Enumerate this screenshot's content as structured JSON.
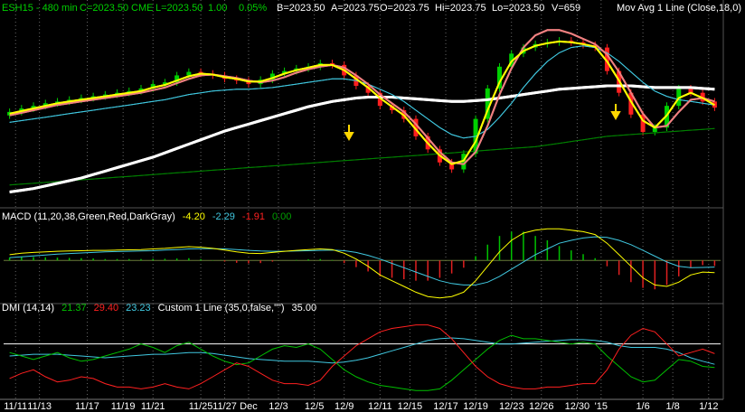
{
  "header": {
    "symbol": "ESH15 - 480 min",
    "close": "C=2023.50",
    "exchange": "CME",
    "last": "L=2023.50",
    "change": "1.00",
    "change_pct": "0.05%",
    "bid": "B=2023.50",
    "ask": "A=2023.75",
    "open": "O=2023.75",
    "high": "Hi=2023.75",
    "low": "Lo=2023.50",
    "volume": "V=659"
  },
  "chart_data": [
    {
      "type": "candlestick",
      "ylim": [
        1968,
        2077
      ],
      "up_color": "#00d000",
      "down_color": "#ff2020",
      "open": [
        2019,
        2021,
        2023,
        2024.5,
        2026,
        2027,
        2028,
        2029,
        2030,
        2031,
        2032,
        2033,
        2034.5,
        2037,
        2038,
        2042,
        2044,
        2043,
        2042,
        2040,
        2039,
        2037,
        2039.5,
        2043,
        2044.5,
        2046,
        2047,
        2049,
        2048,
        2042,
        2036,
        2032,
        2024.5,
        2022,
        2017,
        2007,
        1999.5,
        1992,
        1988,
        1997,
        2017,
        2034.5,
        2047,
        2054.5,
        2058,
        2060,
        2061,
        2062,
        2061,
        2059.5,
        2058,
        2044.5,
        2032,
        2019.5,
        2009.5,
        2012,
        2024.5,
        2034.5,
        2032,
        2027
      ],
      "high": [
        2023,
        2025,
        2026.5,
        2028,
        2029,
        2030,
        2031,
        2032,
        2033,
        2034,
        2035,
        2036.5,
        2039,
        2040,
        2044,
        2046,
        2046,
        2045,
        2044,
        2042,
        2041,
        2041.5,
        2045,
        2046.5,
        2048,
        2049,
        2051,
        2051,
        2050,
        2044,
        2038,
        2034,
        2026.5,
        2024,
        2019,
        2009,
        2001.5,
        1994,
        1999,
        2019,
        2036.5,
        2049,
        2056.5,
        2060,
        2062,
        2063,
        2064,
        2064,
        2063,
        2061.5,
        2060,
        2046.5,
        2034,
        2021.5,
        2014,
        2026.5,
        2036.5,
        2036.5,
        2034,
        2029
      ],
      "low": [
        2017,
        2019,
        2021,
        2022.5,
        2024,
        2025,
        2026,
        2027,
        2028,
        2029,
        2030,
        2031,
        2032.5,
        2035,
        2036,
        2040,
        2041,
        2040,
        2038,
        2037,
        2035,
        2035,
        2037.5,
        2041,
        2042.5,
        2044,
        2045,
        2046,
        2040,
        2034,
        2030,
        2022.5,
        2020,
        2015,
        2005,
        1997.5,
        1990,
        1986,
        1986,
        1995,
        2015,
        2032.5,
        2045,
        2052.5,
        2056,
        2058,
        2059,
        2059,
        2057.5,
        2056,
        2042.5,
        2030,
        2017.5,
        2007.5,
        2007.5,
        2010,
        2022.5,
        2030,
        2025,
        2021.5
      ],
      "close": [
        2021,
        2023,
        2024.5,
        2026,
        2027,
        2028,
        2029,
        2030,
        2031,
        2032,
        2033,
        2034.5,
        2037,
        2038,
        2042,
        2044,
        2043,
        2042,
        2040,
        2039,
        2037,
        2039.5,
        2043,
        2044.5,
        2046,
        2047,
        2049,
        2048,
        2042,
        2036,
        2032,
        2024.5,
        2022,
        2017,
        2007,
        1999.5,
        1992,
        1988,
        1997,
        2017,
        2034.5,
        2047,
        2054.5,
        2058,
        2060,
        2061,
        2062,
        2061,
        2059.5,
        2058,
        2044.5,
        2032,
        2019.5,
        2009.5,
        2012,
        2024.5,
        2034.5,
        2032,
        2027,
        2023.5
      ],
      "series": [
        {
          "color": "#008000",
          "values": [
            1979,
            1979.5,
            1980,
            1980.5,
            1981,
            1981.5,
            1982,
            1982.5,
            1983,
            1983.5,
            1984,
            1984.5,
            1985,
            1985.5,
            1986,
            1986.5,
            1987,
            1987.5,
            1988,
            1988.5,
            1989,
            1989.5,
            1990,
            1990.5,
            1991,
            1991.5,
            1992,
            1992.5,
            1993,
            1993.5,
            1994,
            1994.5,
            1995,
            1995.5,
            1996,
            1996.5,
            1997,
            1997.5,
            1998,
            1998.5,
            1999,
            1999.5,
            2000,
            2000.5,
            2001,
            2002,
            2003,
            2004,
            2005,
            2006,
            2007,
            2007.5,
            2008,
            2008.5,
            2009,
            2009.5,
            2010,
            2010.5,
            2011,
            2011.5
          ]
        },
        {
          "color": "#ffffff",
          "width": 3,
          "values": [
            1975,
            1976,
            1977,
            1978.5,
            1980,
            1981.5,
            1983,
            1985,
            1987,
            1989,
            1991,
            1993,
            1995,
            1997.5,
            2000,
            2002.5,
            2005,
            2007.5,
            2010,
            2012,
            2014,
            2016,
            2018,
            2020,
            2022,
            2024,
            2025.5,
            2027,
            2028,
            2029,
            2029.5,
            2029.5,
            2029.5,
            2029,
            2028.5,
            2028,
            2027.5,
            2027,
            2027,
            2027.5,
            2028,
            2029,
            2030,
            2031,
            2032,
            2033,
            2034,
            2034.5,
            2035,
            2035.5,
            2036,
            2036,
            2036,
            2035.5,
            2035,
            2035,
            2035,
            2035,
            2034.5,
            2034
          ]
        },
        {
          "color": "#40c8e0",
          "values": [
            2015,
            2016,
            2017,
            2018,
            2019,
            2020,
            2021,
            2022,
            2023,
            2024,
            2025,
            2026,
            2027,
            2028,
            2029.5,
            2031,
            2032,
            2033,
            2033.5,
            2034,
            2034,
            2034.5,
            2035,
            2036,
            2037,
            2038,
            2039,
            2040,
            2040,
            2039,
            2037,
            2034,
            2031,
            2027,
            2022,
            2017,
            2012,
            2008,
            2006,
            2007,
            2011,
            2018,
            2026,
            2035,
            2043,
            2050,
            2055,
            2058,
            2059,
            2058,
            2055,
            2050,
            2044,
            2038,
            2033,
            2030,
            2028,
            2027,
            2026,
            2025
          ]
        },
        {
          "color": "#f08080",
          "width": 2,
          "values": [
            2019,
            2020.5,
            2022,
            2023.5,
            2025,
            2026,
            2027,
            2028,
            2029,
            2030,
            2031,
            2032,
            2033.5,
            2035,
            2037.5,
            2040,
            2042,
            2042.5,
            2041.5,
            2040.5,
            2039,
            2038,
            2039,
            2041,
            2043.5,
            2045.5,
            2047,
            2048,
            2046.5,
            2042,
            2037,
            2031,
            2026,
            2021,
            2014,
            2006,
            1998,
            1992,
            1991,
            1998,
            2013,
            2031,
            2046,
            2058,
            2065,
            2068,
            2068,
            2066,
            2063,
            2060,
            2054,
            2044,
            2032,
            2020,
            2012,
            2013,
            2021,
            2028,
            2029,
            2027
          ]
        },
        {
          "name": "Mov Avg 1 Line (Close,18,0)",
          "color": "#ffff00",
          "width": 2,
          "values": [
            2020,
            2021.5,
            2023,
            2024.5,
            2026,
            2027,
            2028,
            2029,
            2030,
            2031,
            2032,
            2033,
            2035,
            2036.5,
            2039,
            2041.5,
            2043,
            2042.5,
            2041,
            2040,
            2038.5,
            2038.5,
            2040.5,
            2043,
            2045,
            2046.5,
            2048,
            2048,
            2045,
            2040,
            2035,
            2029,
            2024,
            2019,
            2011,
            2003,
            1996,
            1991,
            1993,
            2004,
            2022,
            2038,
            2050,
            2056,
            2059,
            2060.5,
            2061.5,
            2061,
            2060,
            2058.5,
            2050,
            2039,
            2027,
            2016,
            2012,
            2019,
            2029,
            2032,
            2029,
            2025
          ]
        }
      ]
    },
    {
      "type": "combo",
      "title": "MACD (11,20,38,Green,Red,DarkGray)",
      "ylim": [
        -14,
        12
      ],
      "zero_color": "#6b7a3a",
      "readouts": [
        {
          "text": "-4.20",
          "color": "#ffff00"
        },
        {
          "text": "-2.29",
          "color": "#40c8e0"
        },
        {
          "text": "-1.91",
          "color": "#ff2020"
        },
        {
          "text": "0.00",
          "color": "#00a000"
        }
      ],
      "series": [
        {
          "kind": "bar",
          "positive_color": "#00c000",
          "negative_color": "#e02020",
          "values": [
            1,
            1.2,
            1.2,
            1.1,
            1,
            0.9,
            0.8,
            0.7,
            0.5,
            0.5,
            0.5,
            0.5,
            0.6,
            0.6,
            0.7,
            0.8,
            0.5,
            0.1,
            -0.4,
            -0.8,
            -1,
            -0.9,
            -0.4,
            0,
            0.2,
            0.4,
            0.5,
            0.2,
            -0.9,
            -2.3,
            -3.8,
            -5.5,
            -6,
            -6.5,
            -7,
            -7,
            -6,
            -4.5,
            -2.5,
            1.5,
            5.5,
            8.5,
            10,
            10,
            8.5,
            7,
            5,
            3.5,
            2.2,
            0.8,
            -2,
            -5,
            -7.5,
            -9.5,
            -10,
            -8.5,
            -5.5,
            -2.5,
            -1.6,
            -1.91
          ]
        },
        {
          "kind": "line",
          "color": "#40c8e0",
          "values": [
            1,
            1.3,
            1.6,
            1.9,
            2.2,
            2.4,
            2.6,
            2.8,
            3,
            3.1,
            3.2,
            3.3,
            3.4,
            3.6,
            3.8,
            4,
            4.1,
            4.1,
            4,
            3.8,
            3.5,
            3.3,
            3.2,
            3.2,
            3.3,
            3.4,
            3.5,
            3.6,
            3.4,
            2.8,
            1.8,
            0.5,
            -1,
            -2.5,
            -4,
            -5.5,
            -7,
            -8,
            -8.5,
            -8.5,
            -7.5,
            -5.5,
            -3,
            -0.5,
            2,
            4,
            6,
            7,
            7.8,
            8.2,
            8,
            7,
            5.5,
            3.5,
            1.5,
            -0.5,
            -2,
            -2.5,
            -2.4,
            -2.29
          ]
        },
        {
          "kind": "line",
          "color": "#ffff00",
          "values": [
            2,
            2.5,
            2.8,
            3,
            3.2,
            3.3,
            3.4,
            3.5,
            3.5,
            3.6,
            3.7,
            3.8,
            4,
            4.2,
            4.5,
            4.8,
            4.6,
            4.2,
            3.6,
            3,
            2.5,
            2.4,
            2.8,
            3.2,
            3.5,
            3.8,
            4,
            3.8,
            2.5,
            0.5,
            -2,
            -5,
            -7,
            -9,
            -11,
            -12.5,
            -13,
            -12.5,
            -11,
            -7,
            -2,
            3,
            7,
            9.5,
            10.5,
            11,
            11,
            10.5,
            10,
            9,
            6,
            2,
            -2,
            -6,
            -8.5,
            -9,
            -7.5,
            -5,
            -4,
            -4.2
          ]
        }
      ]
    },
    {
      "type": "line",
      "title": "DMI (14,14)",
      "ylim": [
        5,
        50
      ],
      "xlim": [
        0,
        60
      ],
      "xticks": [
        {
          "value": 1,
          "label": "11/11"
        },
        {
          "value": 3,
          "label": "11/13"
        },
        {
          "value": 7,
          "label": "11/17"
        },
        {
          "value": 10,
          "label": "11/19"
        },
        {
          "value": 12.5,
          "label": "11/21"
        },
        {
          "value": 16.5,
          "label": "11/25"
        },
        {
          "value": 18.5,
          "label": "11/27"
        },
        {
          "value": 20.5,
          "label": "Dec"
        },
        {
          "value": 23,
          "label": "12/3"
        },
        {
          "value": 26,
          "label": "12/5"
        },
        {
          "value": 28.5,
          "label": "12/9"
        },
        {
          "value": 31.5,
          "label": "12/11"
        },
        {
          "value": 34,
          "label": "12/15"
        },
        {
          "value": 37,
          "label": "12/17"
        },
        {
          "value": 39.5,
          "label": "12/19"
        },
        {
          "value": 42.5,
          "label": "12/23"
        },
        {
          "value": 45,
          "label": "12/26"
        },
        {
          "value": 48,
          "label": "12/30"
        },
        {
          "value": 50,
          "label": "'15"
        },
        {
          "value": 53.5,
          "label": "1/6"
        },
        {
          "value": 56,
          "label": "1/8"
        },
        {
          "value": 59,
          "label": "1/12"
        }
      ],
      "readouts": [
        {
          "text": "21.37",
          "color": "#00c000"
        },
        {
          "text": "29.40",
          "color": "#ff2020"
        },
        {
          "text": "23.23",
          "color": "#40c8e0"
        }
      ],
      "hline": {
        "name": "Custom 1 Line (35,0,false,\"\")",
        "value": 35,
        "label": "35.00",
        "color": "#ffffff"
      },
      "series": [
        {
          "color": "#40c8e0",
          "values": [
            28,
            28.5,
            29,
            29,
            29,
            28.5,
            28,
            27.5,
            27,
            27.5,
            28,
            28.5,
            29,
            29,
            29.5,
            30,
            30,
            29.5,
            28.5,
            27.5,
            26.5,
            26,
            25.5,
            25,
            25,
            25,
            24.5,
            24,
            24.5,
            25.5,
            27,
            29,
            31,
            33,
            35,
            37,
            38,
            38.5,
            38,
            37,
            36,
            35,
            35,
            35.5,
            36,
            36.5,
            37,
            37.5,
            37.5,
            37,
            36,
            34,
            33,
            33,
            33,
            32,
            30,
            27,
            25,
            23.23
          ]
        },
        {
          "color": "#00c000",
          "values": [
            30,
            28,
            26,
            28,
            30,
            27,
            25,
            26,
            28,
            30,
            32,
            35,
            33,
            30,
            34,
            36,
            32,
            28,
            25,
            23,
            24,
            28,
            32,
            34,
            33,
            35,
            32,
            26,
            20,
            16,
            13,
            11,
            10,
            9,
            8,
            8,
            9,
            14,
            20,
            26,
            32,
            37,
            40,
            38,
            38,
            37,
            36,
            35,
            36,
            35,
            28,
            22,
            16,
            13,
            14,
            20,
            26,
            25,
            22,
            21.37
          ]
        },
        {
          "color": "#ff2020",
          "values": [
            15,
            18,
            20,
            16,
            13,
            14,
            16,
            15,
            12,
            10,
            10,
            9,
            10,
            12,
            10,
            9,
            12,
            16,
            20,
            24,
            22,
            18,
            14,
            12,
            12,
            11,
            14,
            22,
            28,
            34,
            38,
            42,
            44,
            45,
            46,
            46,
            44,
            38,
            30,
            22,
            16,
            12,
            10,
            9,
            9,
            10,
            10,
            11,
            12,
            12,
            20,
            32,
            40,
            44,
            42,
            35,
            28,
            30,
            32,
            29.4
          ]
        }
      ]
    }
  ]
}
